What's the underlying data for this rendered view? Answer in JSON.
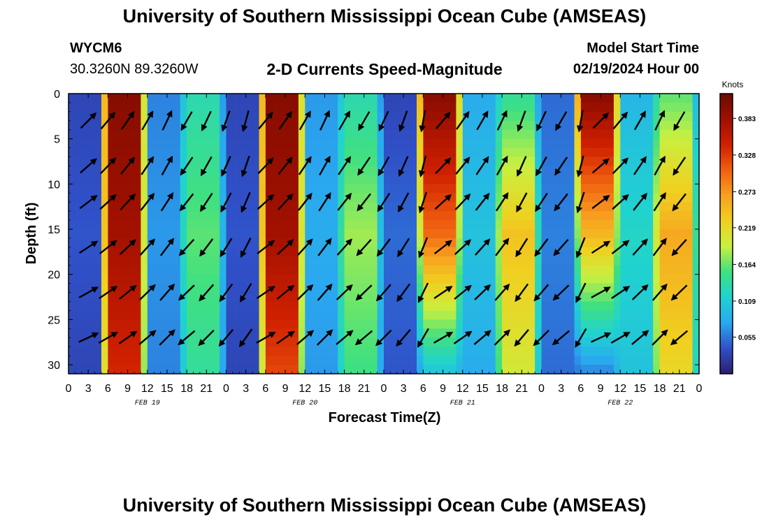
{
  "page": {
    "title": "University of Southern Mississippi Ocean Cube (AMSEAS)",
    "title_repeat": "University of Southern Mississippi Ocean Cube (AMSEAS)",
    "station": "WYCM6",
    "coords": "30.3260N  89.3260W",
    "subtitle": "2-D Currents Speed-Magnitude",
    "model_start_label": "Model Start Time",
    "model_start_value": "02/19/2024 Hour 00"
  },
  "chart_data": {
    "type": "heatmap",
    "xlabel": "Forecast Time(Z)",
    "ylabel": "Depth (ft)",
    "units_label": "Knots",
    "x_hours": [
      0,
      96
    ],
    "x_tick_labels": [
      "0",
      "3",
      "6",
      "9",
      "12",
      "15",
      "18",
      "21",
      "0",
      "3",
      "6",
      "9",
      "12",
      "15",
      "18",
      "21",
      "0",
      "3",
      "6",
      "9",
      "12",
      "15",
      "18",
      "21",
      "0",
      "3",
      "6",
      "9",
      "12",
      "15",
      "18",
      "21",
      "0"
    ],
    "day_labels": [
      "FEB 19",
      "FEB 20",
      "FEB 21",
      "FEB 22"
    ],
    "y_range": [
      0,
      31
    ],
    "y_ticks": [
      0,
      5,
      10,
      15,
      20,
      25,
      30
    ],
    "colorbar_ticks": [
      "0.383",
      "0.328",
      "0.273",
      "0.219",
      "0.164",
      "0.109",
      "0.055"
    ],
    "colorbar_range": [
      0.0,
      0.42
    ],
    "colormap": [
      "#2a1f6e",
      "#3050c8",
      "#2aa8f0",
      "#20d2d0",
      "#40e080",
      "#c8f040",
      "#f0d020",
      "#f8a020",
      "#f06010",
      "#d02000",
      "#a01000",
      "#6a0a00"
    ],
    "day_cycles": [
      {
        "t": [
          0,
          24
        ],
        "dur": 12,
        "rise": 3,
        "speeds": [
          [
            0.03,
            0.04,
            0.03
          ],
          [
            0.4,
            0.38,
            0.34
          ],
          [
            0.06,
            0.07,
            0.06
          ],
          [
            0.13,
            0.16,
            0.14
          ]
        ]
      },
      {
        "t": [
          24,
          48
        ],
        "dur": 12,
        "rise": 3,
        "speeds": [
          [
            0.03,
            0.04,
            0.03
          ],
          [
            0.4,
            0.38,
            0.32
          ],
          [
            0.07,
            0.08,
            0.07
          ],
          [
            0.13,
            0.18,
            0.15
          ]
        ]
      },
      {
        "t": [
          48,
          72
        ],
        "dur": 12,
        "rise": 3,
        "speeds": [
          [
            0.03,
            0.05,
            0.04
          ],
          [
            0.4,
            0.3,
            0.1
          ],
          [
            0.08,
            0.1,
            0.08
          ],
          [
            0.14,
            0.24,
            0.2
          ]
        ]
      },
      {
        "t": [
          72,
          96
        ],
        "dur": 12,
        "rise": 3,
        "speeds": [
          [
            0.05,
            0.06,
            0.05
          ],
          [
            0.4,
            0.25,
            0.06
          ],
          [
            0.09,
            0.12,
            0.1
          ],
          [
            0.16,
            0.26,
            0.22
          ]
        ]
      }
    ],
    "vectors": {
      "hours": [
        3,
        6,
        9,
        12,
        15,
        18,
        21,
        24,
        27,
        30,
        33,
        36,
        39,
        42,
        45,
        48,
        51,
        54,
        57,
        60,
        63,
        66,
        69,
        72,
        75,
        78,
        81,
        84,
        87,
        90,
        93
      ],
      "depths": [
        3,
        8,
        12,
        17,
        22,
        27
      ],
      "directions_deg": [
        45,
        40,
        35,
        30,
        25,
        210,
        205,
        200,
        195,
        40,
        35,
        30,
        25,
        30,
        210,
        205,
        200,
        190,
        40,
        35,
        30,
        25,
        200,
        205,
        210,
        190,
        45,
        40,
        30,
        25,
        210
      ]
    }
  }
}
